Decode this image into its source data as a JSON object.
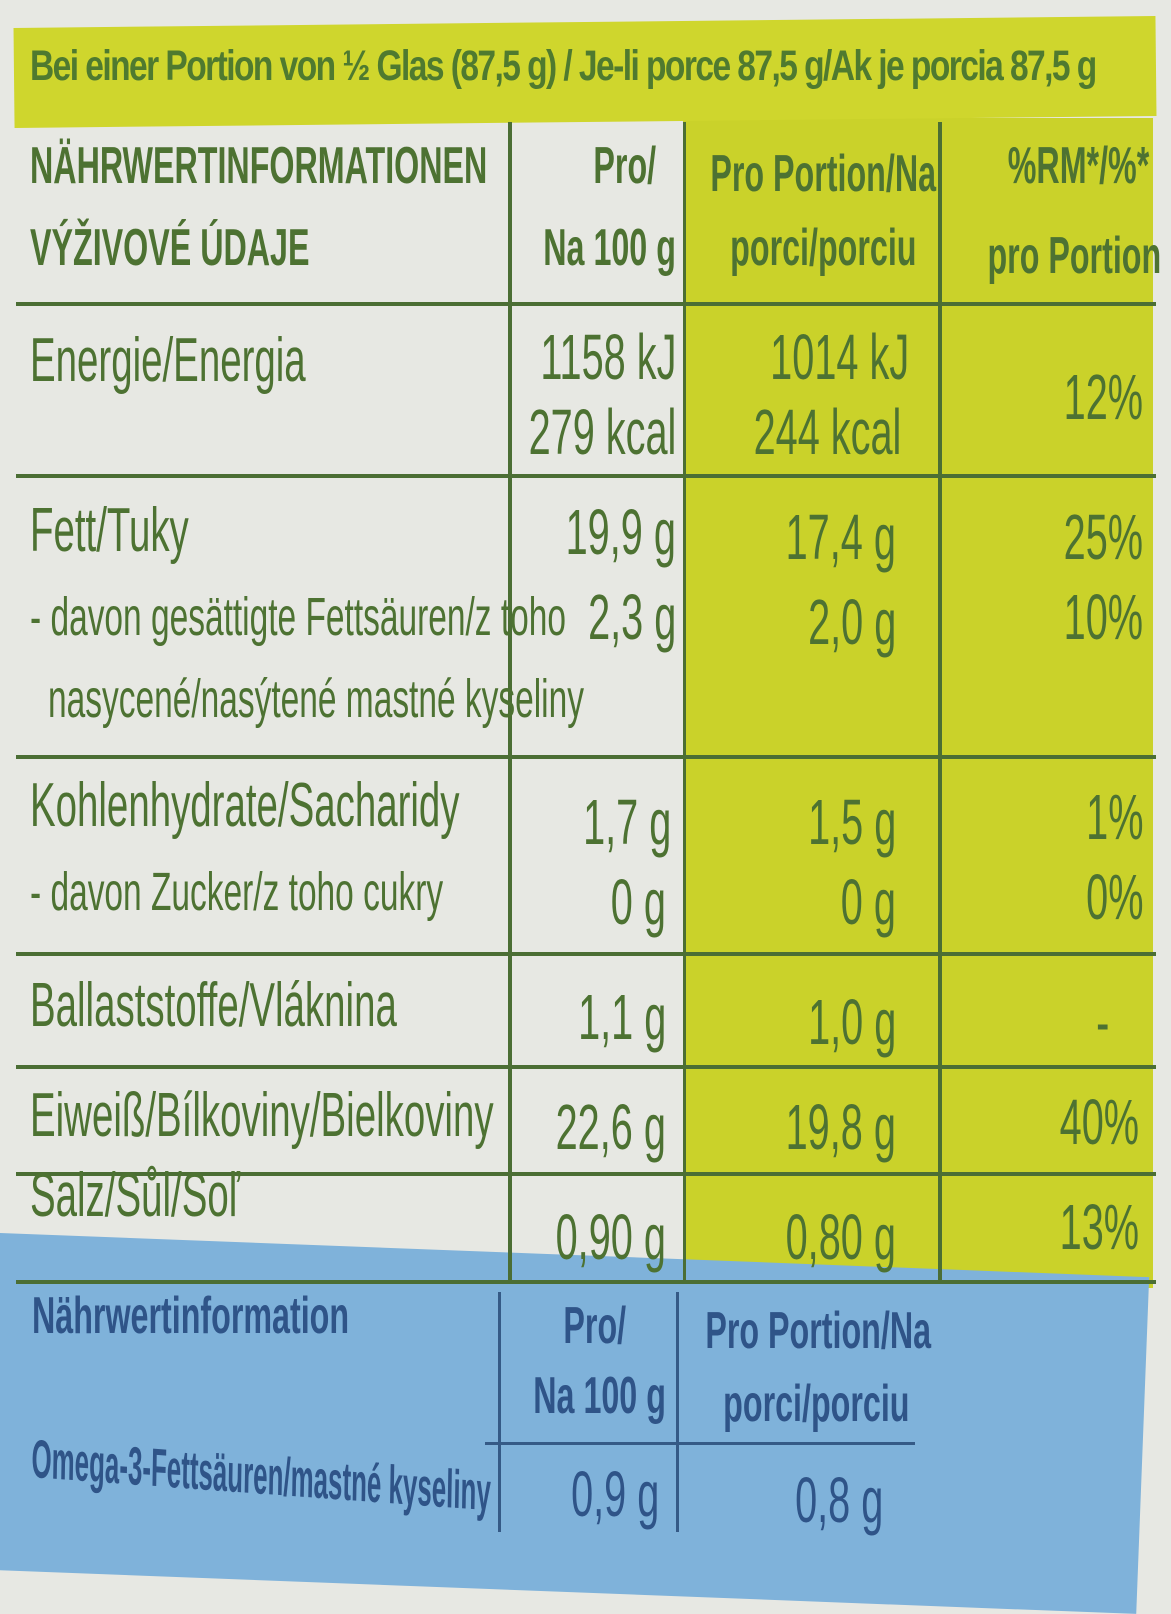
{
  "header_banner": "Bei einer Portion von ½ Glas (87,5 g) / Je-li porce 87,5 g/Ak je porcia 87,5 g",
  "table": {
    "col_headers": {
      "name_line1": "NÄHRWERTINFORMATIONEN",
      "name_line2": "VÝŽIVOVÉ ÚDAJE",
      "per100_line1": "Pro/",
      "per100_line2": "Na 100 g",
      "portion_line1": "Pro Portion/Na",
      "portion_line2": "porci/porciu",
      "rm_line1": "%RM*/%*",
      "rm_line2": "pro Portion"
    },
    "rows": {
      "energy": {
        "label": "Energie/Energia",
        "per100_kj": "1158 kJ",
        "per100_kcal": "279 kcal",
        "portion_kj": "1014 kJ",
        "portion_kcal": "244 kcal",
        "rm": "12%"
      },
      "fat": {
        "label": "Fett/Tuky",
        "per100": "19,9 g",
        "portion": "17,4 g",
        "rm": "25%"
      },
      "sat_fat": {
        "label_line1": "- davon gesättigte Fettsäuren/z toho",
        "label_line2": "nasycené/nasýtené mastné kyseliny",
        "per100": "2,3 g",
        "portion": "2,0 g",
        "rm": "10%"
      },
      "carbs": {
        "label": "Kohlenhydrate/Sacharidy",
        "per100": "1,7 g",
        "portion": "1,5 g",
        "rm": "1%"
      },
      "sugar": {
        "label": "- davon Zucker/z toho cukry",
        "per100": "0 g",
        "portion": "0 g",
        "rm": "0%"
      },
      "fibre": {
        "label": "Ballaststoffe/Vláknina",
        "per100": "1,1 g",
        "portion": "1,0 g",
        "rm": "-"
      },
      "protein": {
        "label": "Eiweiß/Bílkoviny/Bielkoviny",
        "per100": "22,6 g",
        "portion": "19,8 g",
        "rm": "40%"
      },
      "salt": {
        "label": "Salz/Sůl/Soľ",
        "per100": "0,90 g",
        "portion": "0,80 g",
        "rm": "13%"
      }
    }
  },
  "omega_table": {
    "title": "Nährwertinformation",
    "per100_line1": "Pro/",
    "per100_line2": "Na 100 g",
    "portion_line1": "Pro Portion/Na",
    "portion_line2": "porci/porciu",
    "row_label": "Omega-3-Fettsäuren/mastné kyseliny",
    "per100": "0,9 g",
    "portion": "0,8 g"
  },
  "colors": {
    "green_text": "#4d7232",
    "yellow_band": "#cad22a",
    "blue_band": "#7fb2da"
  }
}
